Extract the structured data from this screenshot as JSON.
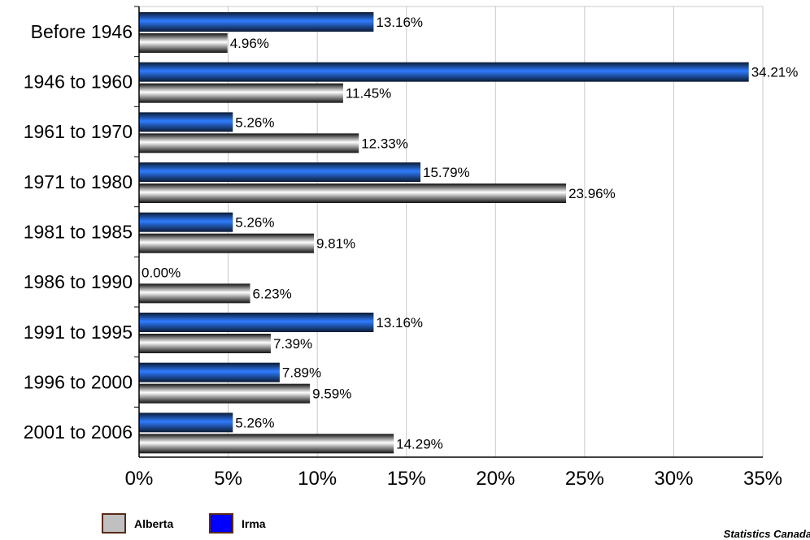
{
  "chart_data": {
    "type": "bar",
    "orientation": "horizontal",
    "categories": [
      "Before 1946",
      "1946 to 1960",
      "1961 to 1970",
      "1971 to 1980",
      "1981 to 1985",
      "1986 to 1990",
      "1991 to 1995",
      "1996 to 2000",
      "2001 to 2006"
    ],
    "series": [
      {
        "name": "Irma",
        "color": "#1f66e6",
        "values": [
          13.16,
          34.21,
          5.26,
          15.79,
          5.26,
          0.0,
          13.16,
          7.89,
          5.26
        ],
        "labels": [
          "13.16%",
          "34.21%",
          "5.26%",
          "15.79%",
          "5.26%",
          "0.00%",
          "13.16%",
          "7.89%",
          "5.26%"
        ]
      },
      {
        "name": "Alberta",
        "color": "#c0c0c0",
        "values": [
          4.96,
          11.45,
          12.33,
          23.96,
          9.81,
          6.23,
          7.39,
          9.59,
          14.29
        ],
        "labels": [
          "4.96%",
          "11.45%",
          "12.33%",
          "23.96%",
          "9.81%",
          "6.23%",
          "7.39%",
          "9.59%",
          "14.29%"
        ]
      }
    ],
    "xlim": [
      0,
      35
    ],
    "xticks": [
      0,
      5,
      10,
      15,
      20,
      25,
      30,
      35
    ],
    "xtick_labels": [
      "0%",
      "5%",
      "10%",
      "15%",
      "20%",
      "25%",
      "30%",
      "35%"
    ],
    "grid": true,
    "legend_position": "bottom-left"
  },
  "legend": {
    "items": [
      {
        "label": "Alberta",
        "color": "#c0c0c0"
      },
      {
        "label": "Irma",
        "color": "#0000ff"
      }
    ]
  },
  "source_text": "Statistics Canada -"
}
